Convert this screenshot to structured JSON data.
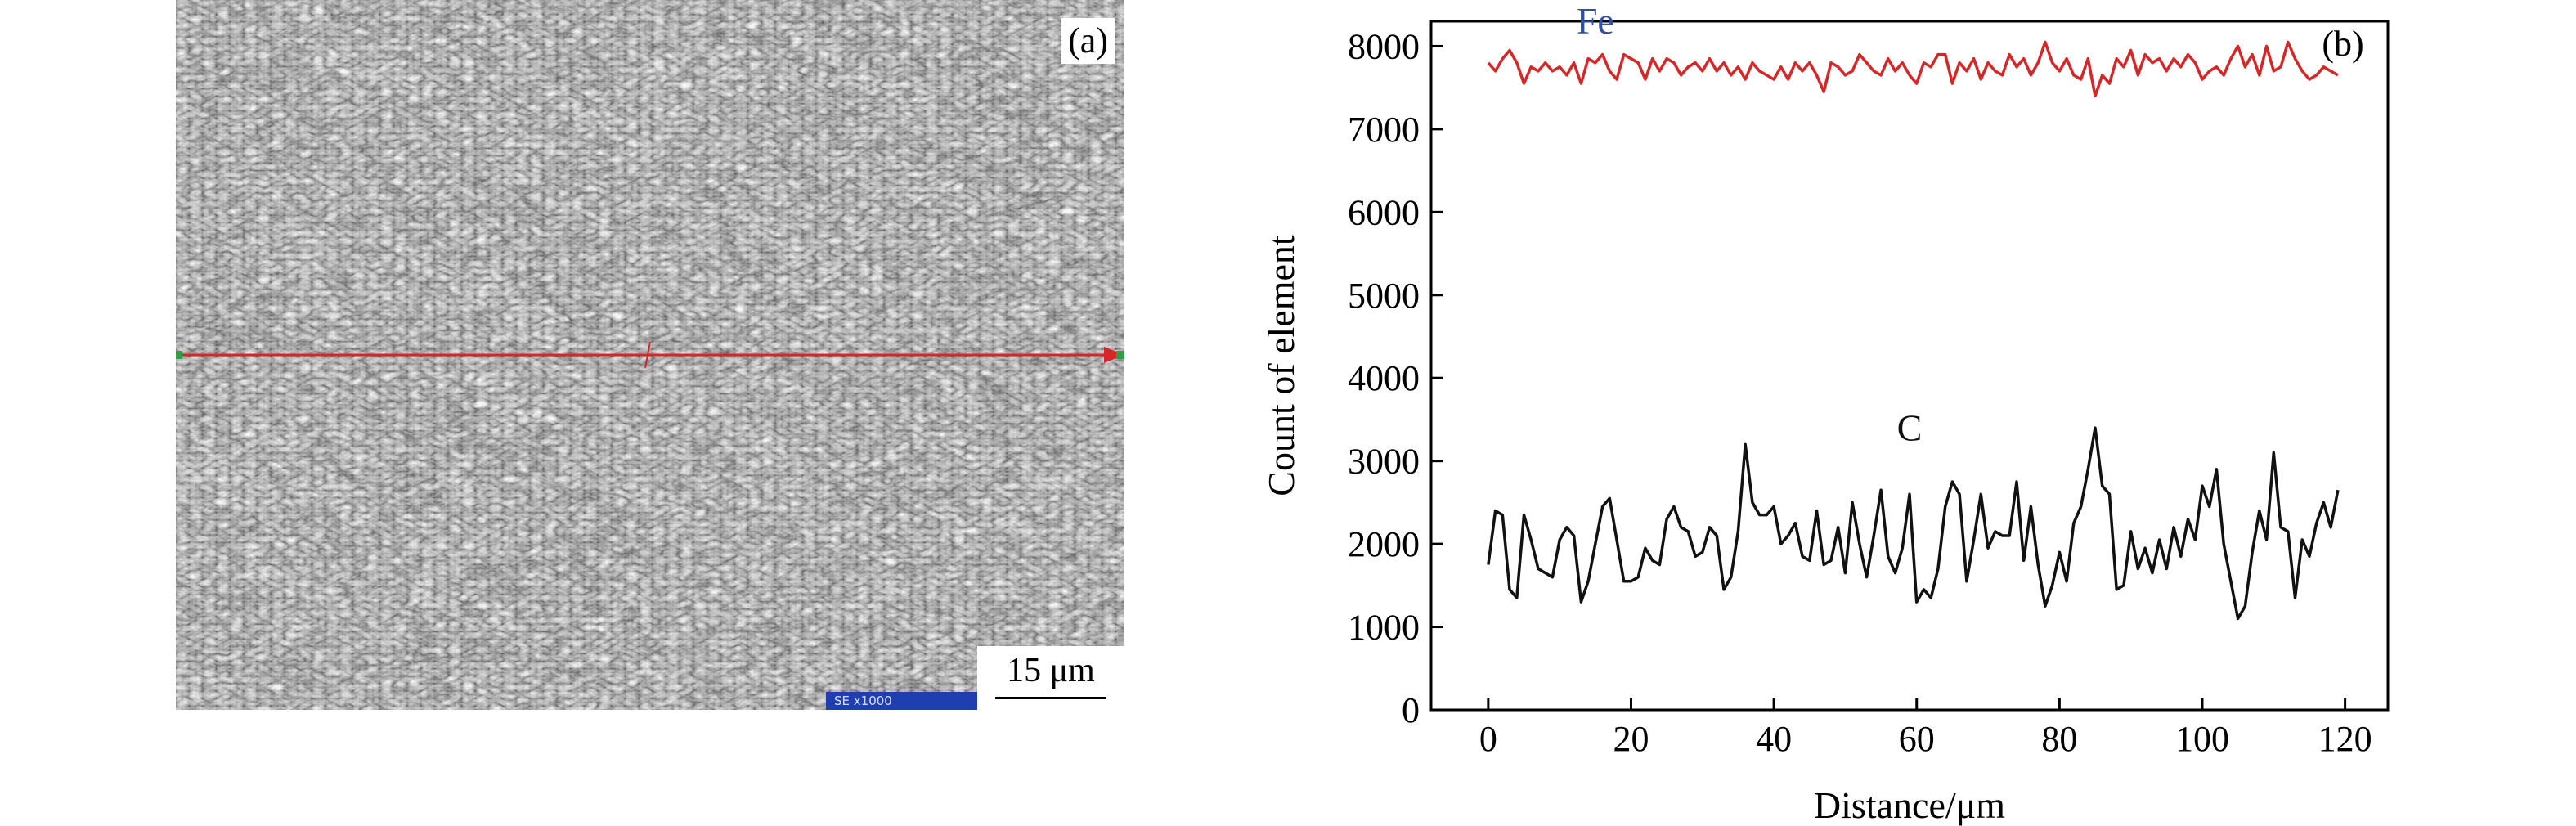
{
  "panel_a": {
    "label": "(a)",
    "scale_bar": "15 μm",
    "magnification_tag": "SE  x1000",
    "line_scan_color": "#d62728"
  },
  "chart_data": {
    "type": "line",
    "label": "(b)",
    "xlabel": "Distance/μm",
    "ylabel": "Count of element",
    "xlim": [
      -8,
      126
    ],
    "ylim": [
      0,
      8300
    ],
    "xticks": [
      0,
      20,
      40,
      60,
      80,
      100,
      120
    ],
    "yticks": [
      0,
      1000,
      2000,
      3000,
      4000,
      5000,
      6000,
      7000,
      8000
    ],
    "grid": false,
    "series": [
      {
        "name": "Fe",
        "color": "#d62728",
        "label_color": "#2e4fa3",
        "label_at": [
          15,
          8150
        ],
        "x": [
          0,
          1,
          2,
          3,
          4,
          5,
          6,
          7,
          8,
          9,
          10,
          11,
          12,
          13,
          14,
          15,
          16,
          17,
          18,
          19,
          20,
          21,
          22,
          23,
          24,
          25,
          26,
          27,
          28,
          29,
          30,
          31,
          32,
          33,
          34,
          35,
          36,
          37,
          38,
          39,
          40,
          41,
          42,
          43,
          44,
          45,
          46,
          47,
          48,
          49,
          50,
          51,
          52,
          53,
          54,
          55,
          56,
          57,
          58,
          59,
          60,
          61,
          62,
          63,
          64,
          65,
          66,
          67,
          68,
          69,
          70,
          71,
          72,
          73,
          74,
          75,
          76,
          77,
          78,
          79,
          80,
          81,
          82,
          83,
          84,
          85,
          86,
          87,
          88,
          89,
          90,
          91,
          92,
          93,
          94,
          95,
          96,
          97,
          98,
          99,
          100,
          101,
          102,
          103,
          104,
          105,
          106,
          107,
          108,
          109,
          110,
          111,
          112,
          113,
          114,
          115,
          116,
          117,
          118,
          119
        ],
        "values": [
          7800,
          7700,
          7850,
          7950,
          7800,
          7550,
          7750,
          7700,
          7800,
          7700,
          7750,
          7650,
          7800,
          7550,
          7850,
          7800,
          7900,
          7700,
          7600,
          7900,
          7850,
          7800,
          7600,
          7850,
          7700,
          7850,
          7800,
          7650,
          7750,
          7800,
          7700,
          7850,
          7700,
          7800,
          7650,
          7750,
          7600,
          7800,
          7700,
          7650,
          7600,
          7750,
          7600,
          7800,
          7700,
          7800,
          7650,
          7450,
          7800,
          7750,
          7650,
          7700,
          7900,
          7800,
          7700,
          7650,
          7850,
          7700,
          7800,
          7650,
          7550,
          7800,
          7750,
          7900,
          7900,
          7550,
          7800,
          7700,
          7850,
          7600,
          7800,
          7700,
          7650,
          7900,
          7750,
          7850,
          7650,
          7800,
          8050,
          7800,
          7700,
          7850,
          7650,
          7600,
          7850,
          7400,
          7650,
          7550,
          7850,
          7750,
          7950,
          7650,
          7900,
          7800,
          7850,
          7700,
          7850,
          7750,
          7900,
          7800,
          7600,
          7700,
          7750,
          7650,
          7850,
          8000,
          7750,
          7900,
          7650,
          8000,
          7700,
          7750,
          8050,
          7850,
          7700,
          7600,
          7650,
          7750,
          7700,
          7650
        ]
      },
      {
        "name": "C",
        "color": "#111111",
        "label_color": "#111111",
        "label_at": [
          59,
          3250
        ],
        "x": [
          0,
          1,
          2,
          3,
          4,
          5,
          6,
          7,
          8,
          9,
          10,
          11,
          12,
          13,
          14,
          15,
          16,
          17,
          18,
          19,
          20,
          21,
          22,
          23,
          24,
          25,
          26,
          27,
          28,
          29,
          30,
          31,
          32,
          33,
          34,
          35,
          36,
          37,
          38,
          39,
          40,
          41,
          42,
          43,
          44,
          45,
          46,
          47,
          48,
          49,
          50,
          51,
          52,
          53,
          54,
          55,
          56,
          57,
          58,
          59,
          60,
          61,
          62,
          63,
          64,
          65,
          66,
          67,
          68,
          69,
          70,
          71,
          72,
          73,
          74,
          75,
          76,
          77,
          78,
          79,
          80,
          81,
          82,
          83,
          84,
          85,
          86,
          87,
          88,
          89,
          90,
          91,
          92,
          93,
          94,
          95,
          96,
          97,
          98,
          99,
          100,
          101,
          102,
          103,
          104,
          105,
          106,
          107,
          108,
          109,
          110,
          111,
          112,
          113,
          114,
          115,
          116,
          117,
          118,
          119
        ],
        "values": [
          1750,
          2400,
          2350,
          1450,
          1350,
          2350,
          2050,
          1700,
          1650,
          1600,
          2050,
          2200,
          2100,
          1300,
          1550,
          2000,
          2450,
          2550,
          2050,
          1550,
          1550,
          1600,
          1950,
          1800,
          1750,
          2300,
          2450,
          2200,
          2150,
          1850,
          1900,
          2200,
          2100,
          1450,
          1600,
          2150,
          3200,
          2500,
          2350,
          2350,
          2450,
          2000,
          2100,
          2250,
          1850,
          1800,
          2400,
          1750,
          1800,
          2200,
          1650,
          2500,
          2000,
          1600,
          2100,
          2650,
          1850,
          1650,
          1950,
          2600,
          1300,
          1450,
          1350,
          1700,
          2450,
          2750,
          2600,
          1550,
          2050,
          2600,
          1950,
          2150,
          2100,
          2100,
          2750,
          1800,
          2450,
          1750,
          1250,
          1500,
          1900,
          1550,
          2250,
          2450,
          2900,
          3400,
          2700,
          2600,
          1450,
          1500,
          2150,
          1700,
          1950,
          1650,
          2050,
          1700,
          2200,
          1850,
          2300,
          2050,
          2700,
          2450,
          2900,
          2000,
          1550,
          1100,
          1250,
          1900,
          2400,
          2050,
          3100,
          2200,
          2150,
          1350,
          2050,
          1850,
          2250,
          2500,
          2200,
          2650
        ]
      }
    ]
  }
}
